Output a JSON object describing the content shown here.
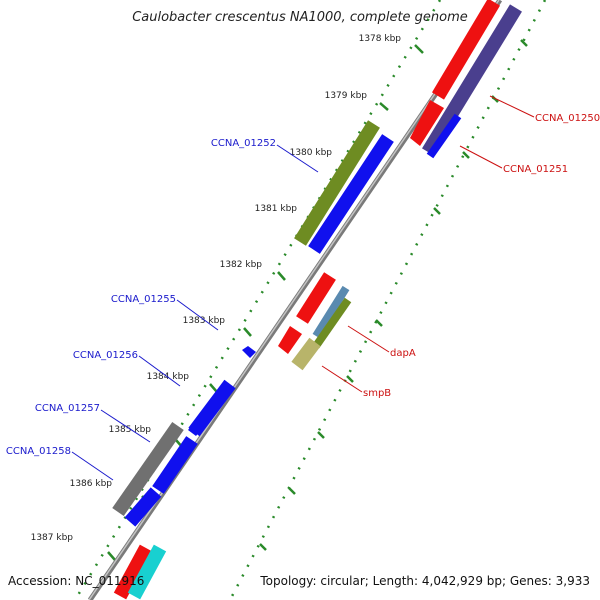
{
  "title": "Caulobacter crescentus NA1000, complete genome",
  "footer": {
    "accession": "Accession: NC_011916",
    "topology": "Topology: circular; Length: 4,042,929 bp; Genes: 3,933"
  },
  "ticks": [
    "1378 kbp",
    "1379 kbp",
    "1380 kbp",
    "1381 kbp",
    "1382 kbp",
    "1383 kbp",
    "1384 kbp",
    "1385 kbp",
    "1386 kbp",
    "1387 kbp"
  ],
  "gene_labels": {
    "ccna_01250": "CCNA_01250",
    "ccna_01251": "CCNA_01251",
    "ccna_01252": "CCNA_01252",
    "ccna_01255": "CCNA_01255",
    "ccna_01256": "CCNA_01256",
    "ccna_01257": "CCNA_01257",
    "ccna_01258": "CCNA_01258",
    "dapA": "dapA",
    "smpB": "smpB"
  },
  "colors": {
    "backbone": "#8c8c8c",
    "ticks": "#2a8a2a",
    "label_blue": "#1a1acc",
    "label_red": "#cc1111",
    "cds_red": "#ee1111",
    "cds_blue": "#1010ee",
    "cds_olive": "#6e8c22",
    "cds_purple": "#4a3f8e",
    "cds_gray": "#707070",
    "cds_steel": "#5a8ab0",
    "cds_khaki": "#b8b46a",
    "cds_cyan": "#18d0d0"
  }
}
